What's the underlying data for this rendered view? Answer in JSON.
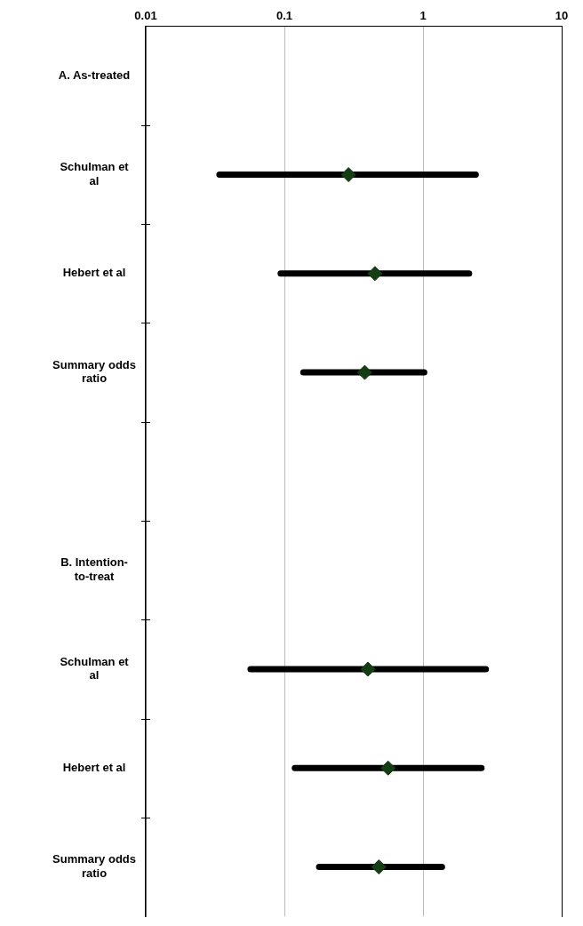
{
  "chart_data": {
    "type": "scatter",
    "orientation": "horizontal",
    "categories": [
      "A. As-treated",
      "Schulman et al",
      "Hebert et al",
      "Summary odds ratio",
      null,
      "B. Intention-to-treat",
      "Schulman et al",
      "Hebert et al",
      "Summary odds ratio"
    ],
    "color": "#143d14",
    "values": [
      null,
      0.29,
      0.45,
      0.38,
      null,
      null,
      0.4,
      0.56,
      0.48
    ],
    "errors": [
      null,
      [
        0.034,
        2.4
      ],
      [
        0.094,
        2.15
      ],
      [
        0.137,
        1.02
      ],
      null,
      null,
      [
        0.057,
        2.84
      ],
      [
        0.119,
        2.64
      ],
      [
        0.178,
        1.37
      ]
    ],
    "log": "x",
    "xlim": [
      0.01,
      10
    ],
    "xticks": [
      0.01,
      0.1,
      1,
      10
    ],
    "grid": "x",
    "marker": "diamond",
    "legend": false
  }
}
